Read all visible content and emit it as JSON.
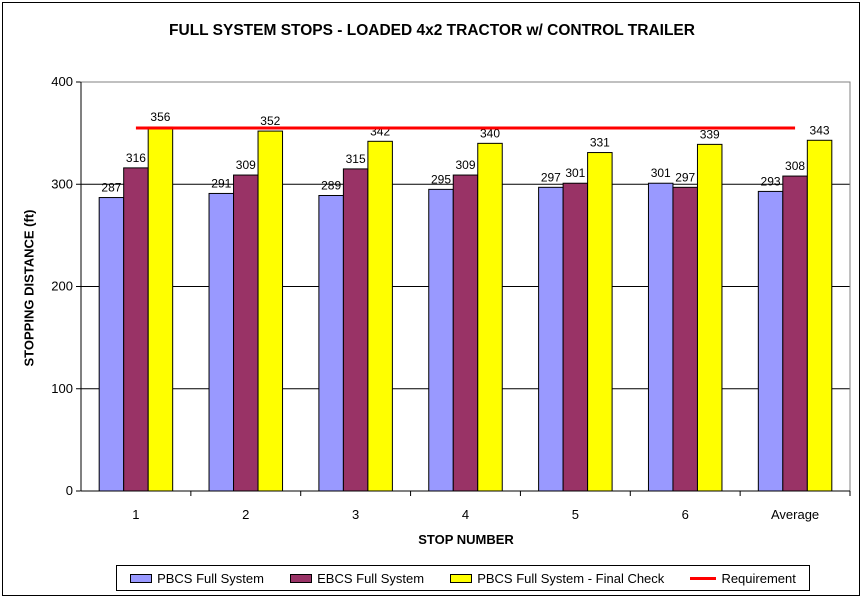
{
  "chart_data": {
    "type": "bar",
    "title": "FULL SYSTEM STOPS - LOADED 4x2 TRACTOR w/ CONTROL TRAILER",
    "xlabel": "STOP NUMBER",
    "ylabel": "STOPPING DISTANCE (ft)",
    "ylim": [
      0,
      400
    ],
    "yticks": [
      "0",
      "100",
      "200",
      "300",
      "400"
    ],
    "grid": true,
    "legend_position": "bottom",
    "categories": [
      "1",
      "2",
      "3",
      "4",
      "5",
      "6",
      "Average"
    ],
    "series": [
      {
        "name": "PBCS Full System",
        "color": "#9999ff",
        "values": [
          287,
          291,
          289,
          295,
          297,
          301,
          293
        ]
      },
      {
        "name": "EBCS Full System",
        "color": "#993366",
        "values": [
          316,
          309,
          315,
          309,
          301,
          297,
          308
        ]
      },
      {
        "name": "PBCS Full System - Final Check",
        "color": "#ffff00",
        "values": [
          356,
          352,
          342,
          340,
          331,
          339,
          343
        ]
      }
    ],
    "reference_line": {
      "name": "Requirement",
      "value": 355,
      "color": "#ff0000"
    }
  }
}
